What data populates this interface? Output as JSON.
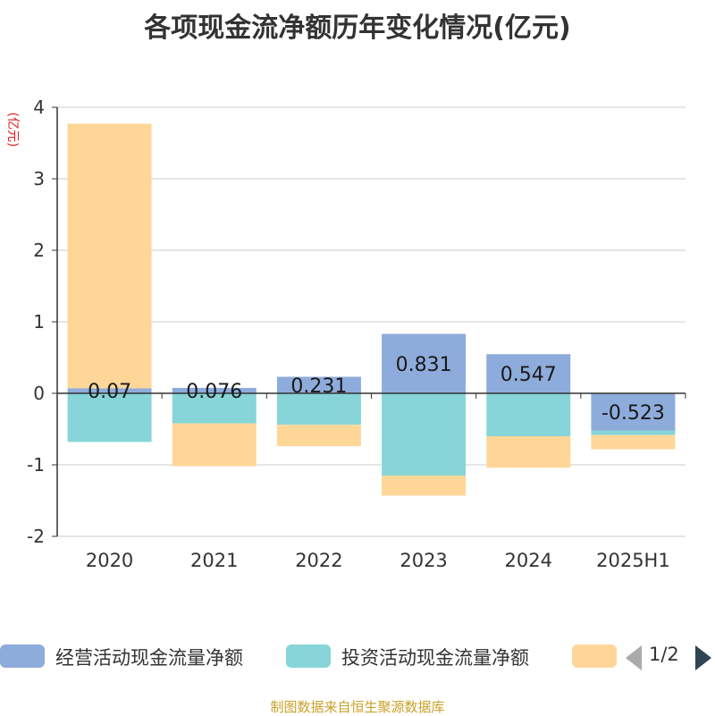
{
  "title": "各项现金流净额历年变化情况(亿元)",
  "source_note": "制图数据来自恒生聚源数据库",
  "legend": {
    "items": [
      {
        "name": "经营活动现金流量净额",
        "color": "#8eacdb"
      },
      {
        "name": "投资活动现金流量净额",
        "color": "#87d5d8"
      },
      {
        "name": "",
        "color": "#fed798"
      }
    ],
    "page_text": "1/2",
    "prev_icon": "arrow-left-icon",
    "next_icon": "arrow-right-icon"
  },
  "chart_data": {
    "type": "bar",
    "stacked": true,
    "title": "各项现金流净额历年变化情况(亿元)",
    "ylabel": "(亿元)",
    "ylim": [
      -2,
      4
    ],
    "yticks": [
      -2,
      -1,
      0,
      1,
      2,
      3,
      4
    ],
    "grid": true,
    "legend_position": "bottom",
    "categories": [
      "2020",
      "2021",
      "2022",
      "2023",
      "2024",
      "2025H1"
    ],
    "series": [
      {
        "name": "经营活动现金流量净额",
        "color": "#8eacdb",
        "values": [
          0.07,
          0.076,
          0.231,
          0.831,
          0.547,
          -0.523
        ],
        "labels": [
          "0.07",
          "0.076",
          "0.231",
          "0.831",
          "0.547",
          "-0.523"
        ]
      },
      {
        "name": "投资活动现金流量净额",
        "color": "#87d5d8",
        "values": [
          -0.68,
          -0.42,
          -0.44,
          -1.15,
          -0.6,
          -0.06
        ]
      },
      {
        "name": "",
        "color": "#fed798",
        "values": [
          3.7,
          -0.6,
          -0.3,
          -0.28,
          -0.44,
          -0.2
        ]
      }
    ]
  }
}
